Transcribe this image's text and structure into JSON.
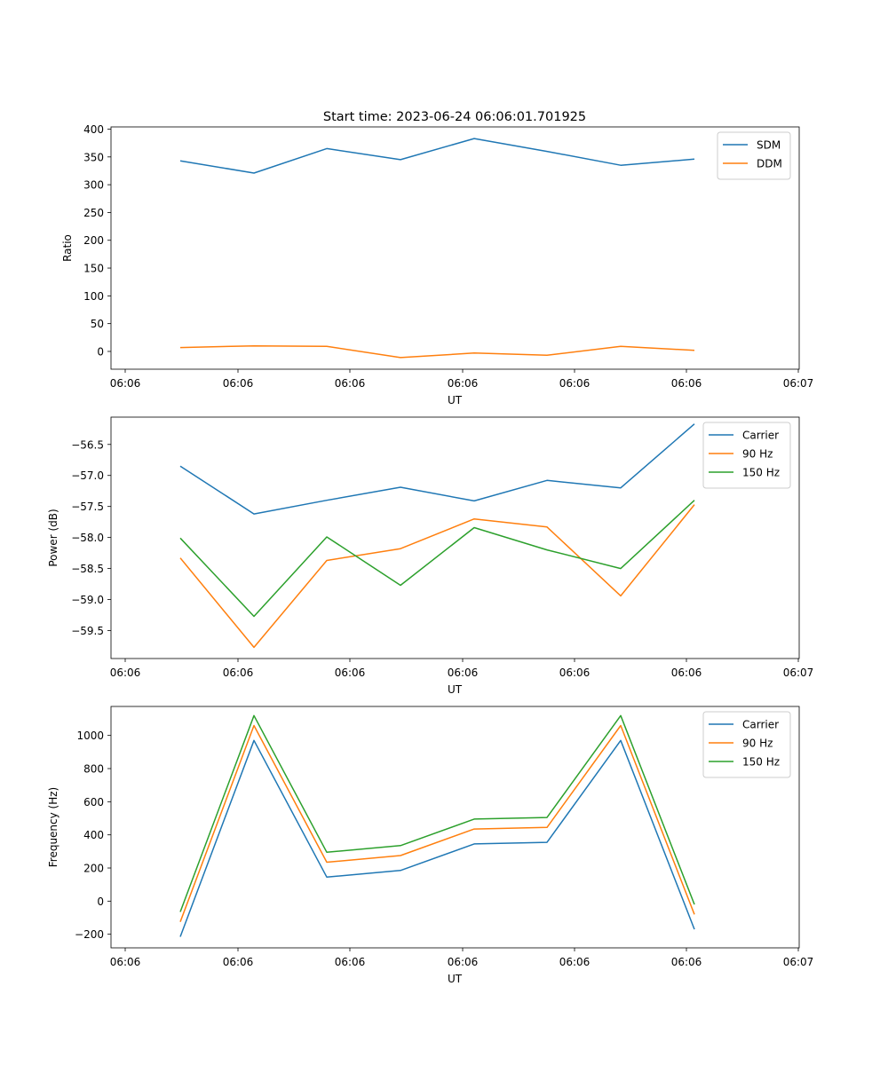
{
  "figure_title": "Start time: 2023-06-24 06:06:01.701925",
  "colors": {
    "blue": "#1f77b4",
    "orange": "#ff7f0e",
    "green": "#2ca02c"
  },
  "chart_data": [
    {
      "type": "line",
      "title": "Start time: 2023-06-24 06:06:01.701925",
      "xlabel": "UT",
      "ylabel": "Ratio",
      "x_tick_labels": [
        "06:06",
        "06:06",
        "06:06",
        "06:06",
        "06:06",
        "06:06",
        "06:07"
      ],
      "y_ticks": [
        0,
        50,
        100,
        150,
        200,
        250,
        300,
        350,
        400
      ],
      "ylim": [
        -32,
        404
      ],
      "legend": "top-right",
      "grid": false,
      "series": [
        {
          "name": "SDM",
          "color": "#1f77b4",
          "values": [
            343,
            321,
            365,
            345,
            383,
            360,
            335,
            346
          ]
        },
        {
          "name": "DDM",
          "color": "#ff7f0e",
          "values": [
            7,
            10,
            9,
            -11,
            -3,
            -7,
            9,
            2
          ]
        }
      ]
    },
    {
      "type": "line",
      "xlabel": "UT",
      "ylabel": "Power (dB)",
      "x_tick_labels": [
        "06:06",
        "06:06",
        "06:06",
        "06:06",
        "06:06",
        "06:06",
        "06:07"
      ],
      "y_ticks": [
        -59.5,
        -59.0,
        -58.5,
        -58.0,
        -57.5,
        -57.0,
        -56.5
      ],
      "y_tick_labels": [
        "−59.5",
        "−59.0",
        "−58.5",
        "−58.0",
        "−57.5",
        "−57.0",
        "−56.5"
      ],
      "ylim": [
        -59.95,
        -56.06
      ],
      "legend": "top-right",
      "grid": false,
      "series": [
        {
          "name": "Carrier",
          "color": "#1f77b4",
          "values": [
            -56.85,
            -57.62,
            -57.4,
            -57.19,
            -57.41,
            -57.08,
            -57.2,
            -56.17
          ]
        },
        {
          "name": "90 Hz",
          "color": "#ff7f0e",
          "values": [
            -58.33,
            -59.77,
            -58.37,
            -58.18,
            -57.7,
            -57.83,
            -58.94,
            -57.47
          ]
        },
        {
          "name": "150 Hz",
          "color": "#2ca02c",
          "values": [
            -58.01,
            -59.27,
            -57.99,
            -58.77,
            -57.84,
            -58.2,
            -58.5,
            -57.4
          ]
        }
      ]
    },
    {
      "type": "line",
      "xlabel": "UT",
      "ylabel": "Frequency (Hz)",
      "x_tick_labels": [
        "06:06",
        "06:06",
        "06:06",
        "06:06",
        "06:06",
        "06:06",
        "06:07"
      ],
      "y_ticks": [
        -200,
        0,
        200,
        400,
        600,
        800,
        1000
      ],
      "y_tick_labels": [
        "−200",
        "0",
        "200",
        "400",
        "600",
        "800",
        "1000"
      ],
      "ylim": [
        -282,
        1175
      ],
      "legend": "top-right",
      "grid": false,
      "series": [
        {
          "name": "Carrier",
          "color": "#1f77b4",
          "values": [
            -215,
            970,
            145,
            185,
            345,
            355,
            970,
            -170
          ]
        },
        {
          "name": "90 Hz",
          "color": "#ff7f0e",
          "values": [
            -125,
            1060,
            235,
            275,
            435,
            445,
            1060,
            -80
          ]
        },
        {
          "name": "150 Hz",
          "color": "#2ca02c",
          "values": [
            -65,
            1120,
            295,
            335,
            495,
            505,
            1120,
            -20
          ]
        }
      ]
    }
  ]
}
